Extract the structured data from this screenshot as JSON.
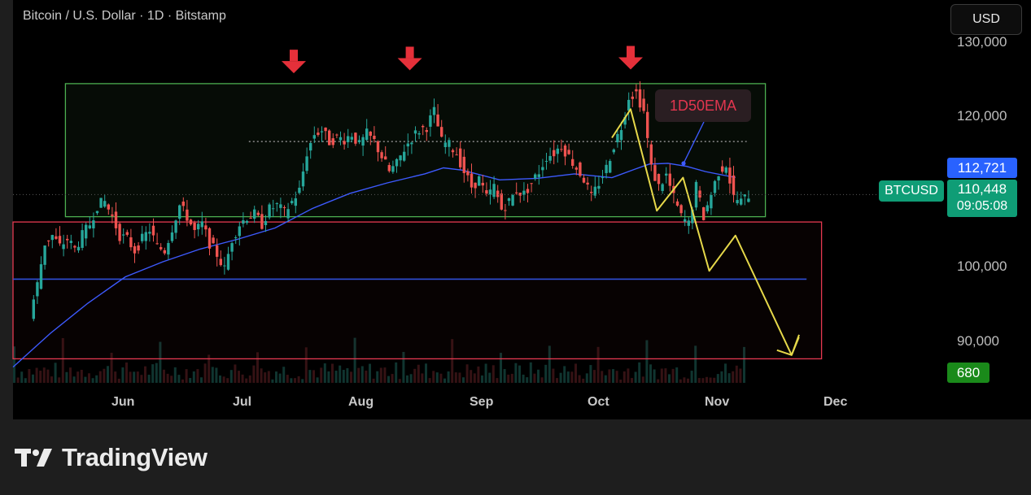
{
  "header": {
    "legend": "Bitcoin / U.S. Dollar · 1D · Bitstamp",
    "currency_button": "USD"
  },
  "price_axis": {
    "ticks": [
      "130,000",
      "120,000",
      "100,000",
      "90,000"
    ]
  },
  "time_axis": {
    "ticks": [
      "Jun",
      "Jul",
      "Aug",
      "Sep",
      "Oct",
      "Nov",
      "Dec"
    ]
  },
  "tags": {
    "symbol": "BTCUSD",
    "ema_value": "112,721",
    "last_price": "110,448",
    "countdown": "09:05:08",
    "volume": "680"
  },
  "annotations": {
    "ema_label": "1D50EMA"
  },
  "brand": {
    "name": "TradingView"
  },
  "colors": {
    "background": "#000000",
    "up_candle": "#26a69a",
    "down_candle": "#ef5350",
    "ema_line": "#3d5afe",
    "range_box_border": "#4caf50",
    "support_box_border": "#e53950",
    "projection": "#e6d84a",
    "marker_arrow": "#e5303a",
    "last_price_tag": "#0f9d76",
    "ema_tag": "#2962ff"
  },
  "chart_data": {
    "type": "candlestick",
    "symbol": "BTCUSD",
    "interval": "1D",
    "exchange": "Bitstamp",
    "y_range": [
      86000,
      132000
    ],
    "y_ticks": [
      90000,
      100000,
      120000,
      130000
    ],
    "x_range": [
      "2025-05-16",
      "2025-12-12"
    ],
    "x_ticks": [
      "2025-06-01",
      "2025-07-01",
      "2025-08-01",
      "2025-09-01",
      "2025-10-01",
      "2025-11-01",
      "2025-12-01"
    ],
    "closes": [
      [
        5,
        94500
      ],
      [
        7,
        98500
      ],
      [
        9,
        104000
      ],
      [
        11,
        105000
      ],
      [
        13,
        103500
      ],
      [
        15,
        104500
      ],
      [
        17,
        103200
      ],
      [
        19,
        105000
      ],
      [
        21,
        106500
      ],
      [
        23,
        109000
      ],
      [
        25,
        109500
      ],
      [
        27,
        107500
      ],
      [
        29,
        105000
      ],
      [
        31,
        104500
      ],
      [
        33,
        103000
      ],
      [
        35,
        104500
      ],
      [
        37,
        105800
      ],
      [
        39,
        103500
      ],
      [
        41,
        103000
      ],
      [
        43,
        106000
      ],
      [
        45,
        109000
      ],
      [
        47,
        107500
      ],
      [
        49,
        105500
      ],
      [
        51,
        106500
      ],
      [
        53,
        104000
      ],
      [
        55,
        102500
      ],
      [
        57,
        100500
      ],
      [
        59,
        104500
      ],
      [
        61,
        106500
      ],
      [
        63,
        107500
      ],
      [
        65,
        107800
      ],
      [
        67,
        106500
      ],
      [
        69,
        108500
      ],
      [
        71,
        109000
      ],
      [
        73,
        108000
      ],
      [
        75,
        109500
      ],
      [
        77,
        111000
      ],
      [
        79,
        116000
      ],
      [
        81,
        118500
      ],
      [
        83,
        119000
      ],
      [
        85,
        117500
      ],
      [
        87,
        118000
      ],
      [
        89,
        117800
      ],
      [
        91,
        118500
      ],
      [
        93,
        117000
      ],
      [
        95,
        118500
      ],
      [
        97,
        117500
      ],
      [
        99,
        115500
      ],
      [
        101,
        113500
      ],
      [
        103,
        114500
      ],
      [
        105,
        116500
      ],
      [
        107,
        118000
      ],
      [
        109,
        119000
      ],
      [
        111,
        119500
      ],
      [
        113,
        121500
      ],
      [
        115,
        117500
      ],
      [
        117,
        117000
      ],
      [
        119,
        116000
      ],
      [
        121,
        113500
      ],
      [
        123,
        111500
      ],
      [
        125,
        112500
      ],
      [
        127,
        110000
      ],
      [
        129,
        111500
      ],
      [
        131,
        108500
      ],
      [
        133,
        109500
      ],
      [
        135,
        111000
      ],
      [
        137,
        110500
      ],
      [
        139,
        112000
      ],
      [
        141,
        113500
      ],
      [
        143,
        115500
      ],
      [
        145,
        116000
      ],
      [
        147,
        117000
      ],
      [
        149,
        115500
      ],
      [
        151,
        114000
      ],
      [
        153,
        112500
      ],
      [
        155,
        110000
      ],
      [
        157,
        112000
      ],
      [
        159,
        114000
      ],
      [
        161,
        117000
      ],
      [
        163,
        119500
      ],
      [
        165,
        123500
      ],
      [
        167,
        124000
      ],
      [
        169,
        121500
      ],
      [
        171,
        114000
      ],
      [
        173,
        111500
      ],
      [
        175,
        113000
      ],
      [
        177,
        110000
      ],
      [
        179,
        107500
      ],
      [
        181,
        106500
      ],
      [
        183,
        111500
      ],
      [
        185,
        107500
      ],
      [
        187,
        110500
      ],
      [
        189,
        113500
      ],
      [
        191,
        114500
      ],
      [
        193,
        110000
      ],
      [
        195,
        109500
      ],
      [
        197,
        110400
      ]
    ],
    "ema": {
      "name": "1D50EMA",
      "points": [
        [
          0,
          87500
        ],
        [
          10,
          92000
        ],
        [
          20,
          96000
        ],
        [
          30,
          99500
        ],
        [
          40,
          101500
        ],
        [
          50,
          103200
        ],
        [
          60,
          104500
        ],
        [
          70,
          106000
        ],
        [
          80,
          108600
        ],
        [
          90,
          110600
        ],
        [
          100,
          112000
        ],
        [
          110,
          113200
        ],
        [
          115,
          114000
        ],
        [
          120,
          113700
        ],
        [
          130,
          112400
        ],
        [
          140,
          112600
        ],
        [
          150,
          113200
        ],
        [
          160,
          112700
        ],
        [
          166,
          113800
        ],
        [
          170,
          114500
        ],
        [
          175,
          114600
        ],
        [
          180,
          114200
        ],
        [
          185,
          113500
        ],
        [
          190,
          113000
        ],
        [
          193,
          112721
        ]
      ]
    },
    "boxes": [
      {
        "from_day": 14,
        "to_day": 201,
        "low": 107500,
        "high": 125200,
        "color": "#4caf50"
      },
      {
        "from_day": 0,
        "to_day": 216,
        "low": 88600,
        "high": 106800,
        "color": "#e53950"
      }
    ],
    "horizontal_lines": [
      {
        "from_day": 63,
        "to_day": 196,
        "price": 117500,
        "style": "dotted"
      },
      {
        "from_day": 0,
        "to_day": 212,
        "price": 99200,
        "style": "solid"
      }
    ],
    "down_arrows": [
      {
        "day": 75,
        "price": 128200
      },
      {
        "day": 106,
        "price": 128600
      },
      {
        "day": 165,
        "price": 128700
      }
    ],
    "projection": [
      [
        160,
        118000
      ],
      [
        165,
        121800
      ],
      [
        172,
        108300
      ],
      [
        179,
        112700
      ],
      [
        186,
        100300
      ],
      [
        193,
        105000
      ],
      [
        208,
        89100
      ],
      [
        210,
        91800
      ]
    ],
    "last_price": 110448,
    "ema_value": 112721
  }
}
